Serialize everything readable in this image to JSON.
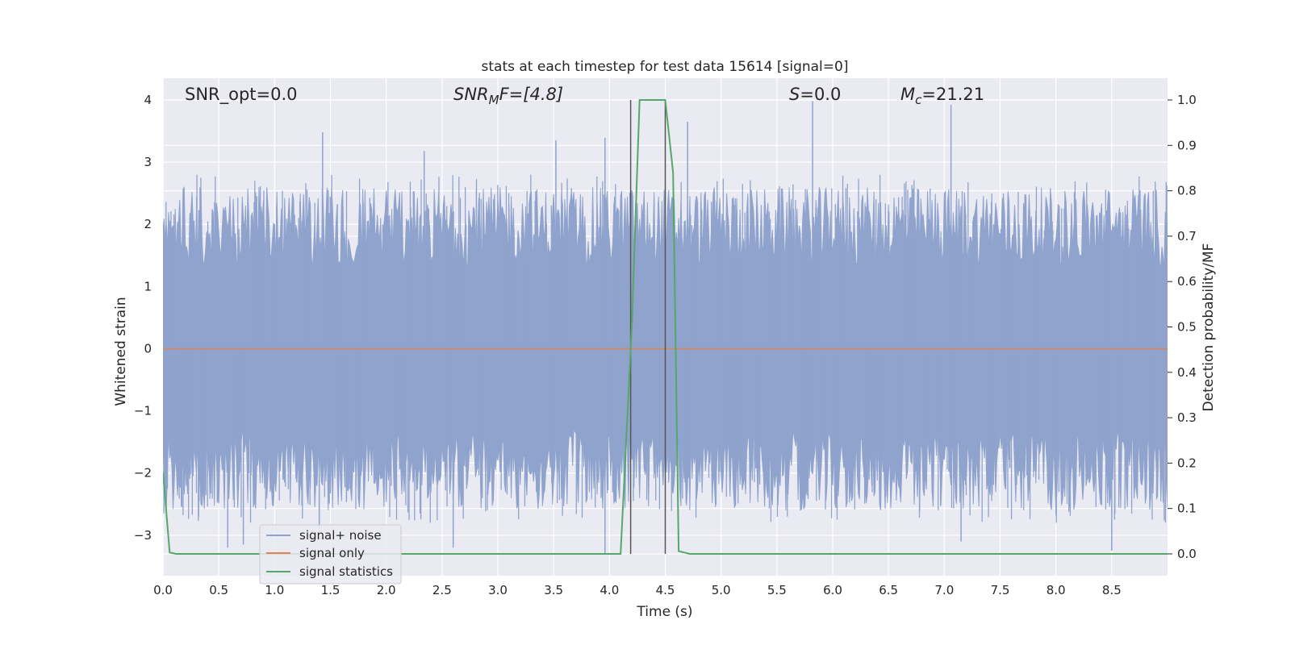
{
  "chart_data": {
    "type": "line",
    "title": "stats at each timestep for test data 15614 [signal=0]",
    "xlabel": "Time (s)",
    "ylabel_left": "Whitened strain",
    "ylabel_right": "Detection probability/MF",
    "xlim": [
      0,
      9
    ],
    "ylim_left": [
      -3.65,
      4.35
    ],
    "ylim_right": [
      -0.048,
      1.048
    ],
    "x_ticks": [
      "0.0",
      "0.5",
      "1.0",
      "1.5",
      "2.0",
      "2.5",
      "3.0",
      "3.5",
      "4.0",
      "4.5",
      "5.0",
      "5.5",
      "6.0",
      "6.5",
      "7.0",
      "7.5",
      "8.0",
      "8.5"
    ],
    "y_ticks_left": [
      "4",
      "3",
      "2",
      "1",
      "0",
      "−1",
      "−2",
      "−3"
    ],
    "y_ticks_right": [
      "1.0",
      "0.9",
      "0.8",
      "0.7",
      "0.6",
      "0.5",
      "0.4",
      "0.3",
      "0.2",
      "0.1",
      "0.0"
    ],
    "grid": true,
    "legend_position": "lower-left",
    "annotations": {
      "snr_opt": "SNR_opt=0.0",
      "snr_mf_base": "SNR",
      "snr_mf_sub": "M",
      "snr_mf_tail": "F=[4.8]",
      "s_var": "S",
      "s_val": "=0.0",
      "mc_var": "M",
      "mc_sub": "c",
      "mc_val": "=21.21"
    },
    "vertical_lines": [
      4.19,
      4.5
    ],
    "series": [
      {
        "name": "signal+ noise",
        "axis": "left",
        "color": "#8fa3cd",
        "description": "dense whitened noise trace, amplitude roughly within [-3.3, 4.0]",
        "spikes": [
          [
            1.43,
            3.48
          ],
          [
            2.34,
            3.18
          ],
          [
            3.52,
            3.35
          ],
          [
            3.96,
            3.39
          ],
          [
            4.7,
            3.65
          ],
          [
            5.82,
            3.98
          ],
          [
            7.06,
            3.92
          ],
          [
            1.4,
            -2.9
          ],
          [
            2.6,
            -3.2
          ],
          [
            3.96,
            -3.3
          ],
          [
            7.15,
            -3.1
          ],
          [
            8.5,
            -3.25
          ],
          [
            0.58,
            -3.2
          ],
          [
            0.72,
            -3.15
          ]
        ]
      },
      {
        "name": "signal only",
        "axis": "left",
        "color": "#dd8452",
        "x": [
          0,
          9
        ],
        "y": [
          0,
          0
        ]
      },
      {
        "name": "signal statistics",
        "axis": "right",
        "color": "#55a868",
        "x": [
          0.0,
          0.06,
          0.12,
          1.0,
          2.0,
          3.0,
          4.0,
          4.1,
          4.2,
          4.27,
          4.5,
          4.57,
          4.62,
          4.72,
          5.5,
          6.5,
          7.5,
          8.5,
          9.0
        ],
        "y": [
          0.18,
          0.003,
          0.0,
          0.0,
          0.0,
          0.0,
          0.0,
          0.0,
          0.5,
          1.0,
          1.0,
          0.84,
          0.006,
          0.0,
          0.0,
          0.0,
          0.0,
          0.0,
          0.0
        ]
      }
    ],
    "colors": {
      "plot_bg": "#eaeaf2",
      "grid": "#ffffff",
      "vline": "#555555"
    }
  }
}
